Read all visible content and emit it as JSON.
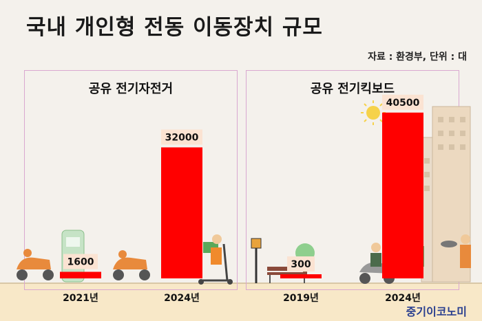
{
  "title": "국내 개인형 전동 이동장치 규모",
  "source": "자료 : 환경부, 단위 : 대",
  "brand": "중기이코노미",
  "chart_data": [
    {
      "type": "bar",
      "title": "공유 전기자전거",
      "categories": [
        "2021년",
        "2024년"
      ],
      "values": [
        1600,
        32000
      ],
      "value_labels": [
        "1600",
        "32000"
      ],
      "ylim": [
        0,
        45000
      ],
      "bar_color": "#ff0000"
    },
    {
      "type": "bar",
      "title": "공유 전기킥보드",
      "categories": [
        "2019년",
        "2024년"
      ],
      "values": [
        300,
        40500
      ],
      "value_labels": [
        "300",
        "40500"
      ],
      "ylim": [
        0,
        45000
      ],
      "bar_color": "#ff0000"
    }
  ]
}
